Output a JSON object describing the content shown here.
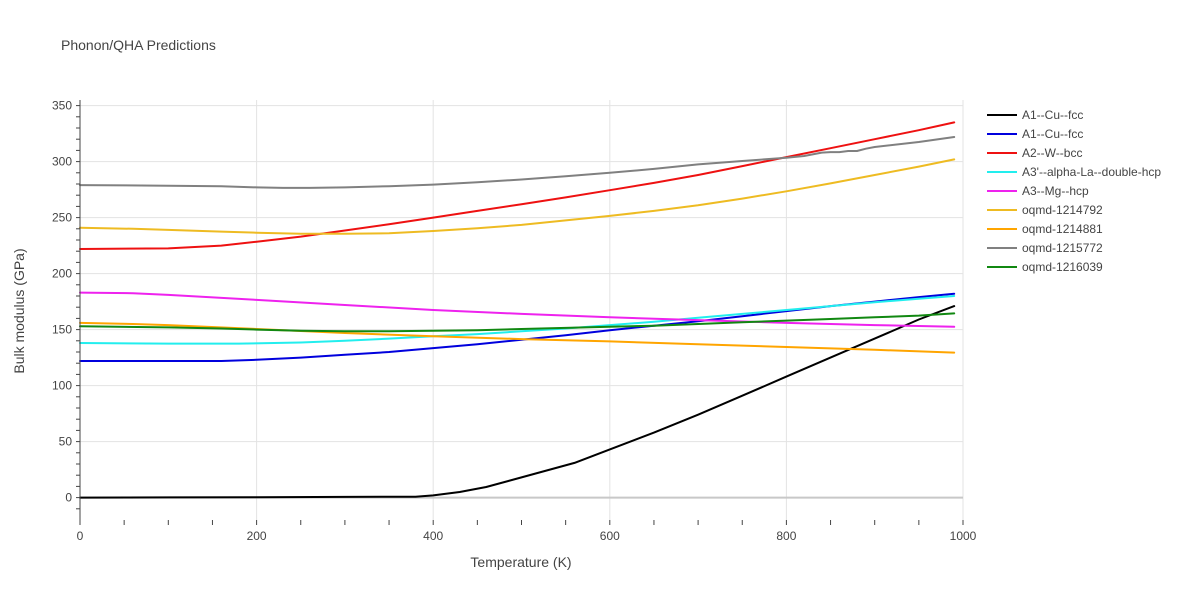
{
  "chart_data": {
    "type": "line",
    "title": "Phonon/QHA Predictions",
    "xlabel": "Temperature (K)",
    "ylabel": "Bulk modulus (GPa)",
    "xlim": [
      0,
      1000
    ],
    "ylim": [
      -20,
      355
    ],
    "x_ticks": [
      0,
      200,
      400,
      600,
      800,
      1000
    ],
    "y_ticks": [
      0,
      50,
      100,
      150,
      200,
      250,
      300,
      350
    ],
    "grid": true,
    "legend_position": "right",
    "series": [
      {
        "name": "A1--Cu--fcc",
        "color": "#000000",
        "x": [
          0,
          100,
          200,
          300,
          380,
          400,
          430,
          460,
          500,
          560,
          600,
          650,
          700,
          750,
          800,
          850,
          900,
          950,
          990
        ],
        "y": [
          0,
          0.2,
          0.4,
          0.6,
          0.8,
          2,
          5,
          9.5,
          18,
          31,
          43,
          58,
          74,
          91,
          108,
          125,
          142,
          159,
          171
        ]
      },
      {
        "name": "A1--Cu--fcc",
        "color": "#0000dd",
        "x": [
          0,
          100,
          160,
          200,
          250,
          300,
          350,
          400,
          450,
          500,
          550,
          600,
          650,
          700,
          750,
          800,
          850,
          900,
          950,
          990
        ],
        "y": [
          122,
          122,
          122,
          123,
          125,
          127.5,
          130,
          133.5,
          137,
          141,
          145,
          149.5,
          153.5,
          157.5,
          162,
          166.5,
          171,
          175,
          179,
          182
        ]
      },
      {
        "name": "A2--W--bcc",
        "color": "#ee1111",
        "x": [
          0,
          100,
          160,
          200,
          250,
          300,
          350,
          400,
          450,
          500,
          550,
          600,
          650,
          700,
          750,
          800,
          850,
          900,
          950,
          990
        ],
        "y": [
          222,
          222.5,
          225,
          228.5,
          233,
          238.5,
          244,
          250,
          256,
          262,
          268,
          274.5,
          281,
          288,
          296,
          304,
          312,
          320,
          328,
          335
        ]
      },
      {
        "name": "A3'--alpha-La--double-hcp",
        "color": "#22eeee",
        "x": [
          0,
          100,
          180,
          250,
          300,
          350,
          400,
          450,
          500,
          550,
          600,
          650,
          700,
          750,
          800,
          850,
          900,
          950,
          990
        ],
        "y": [
          138,
          137.5,
          137.5,
          138.5,
          140,
          142,
          144,
          146,
          148.5,
          151,
          154,
          157,
          160.5,
          164,
          167.5,
          171,
          174.5,
          177.5,
          180
        ]
      },
      {
        "name": "A3--Mg--hcp",
        "color": "#ee22ee",
        "x": [
          0,
          60,
          100,
          200,
          300,
          400,
          500,
          600,
          700,
          800,
          900,
          990
        ],
        "y": [
          183,
          182.5,
          181,
          176.5,
          172,
          167.5,
          164,
          161,
          158.5,
          156,
          154,
          152.5
        ]
      },
      {
        "name": "oqmd-1214792",
        "color": "#eebb22",
        "x": [
          0,
          60,
          100,
          160,
          200,
          250,
          300,
          350,
          400,
          450,
          500,
          550,
          600,
          650,
          700,
          750,
          800,
          850,
          900,
          950,
          990
        ],
        "y": [
          241,
          240,
          239,
          237.5,
          236.5,
          235.5,
          235.5,
          236,
          238,
          240.5,
          243.5,
          247.5,
          251.5,
          256,
          261,
          267,
          273.5,
          280.5,
          288,
          295.5,
          302
        ]
      },
      {
        "name": "oqmd-1214881",
        "color": "#ffa500",
        "x": [
          0,
          60,
          100,
          200,
          300,
          400,
          500,
          600,
          700,
          800,
          900,
          990
        ],
        "y": [
          156,
          155,
          154,
          150.5,
          147,
          144,
          141.5,
          139.5,
          137,
          134.5,
          132,
          129.5
        ]
      },
      {
        "name": "oqmd-1215772",
        "color": "#808080",
        "x": [
          0,
          100,
          160,
          200,
          230,
          260,
          300,
          350,
          400,
          450,
          500,
          550,
          600,
          650,
          700,
          750,
          800,
          820,
          840,
          850,
          860,
          870,
          880,
          890,
          900,
          950,
          990
        ],
        "y": [
          279,
          278.5,
          278,
          277,
          276.5,
          276.5,
          277,
          278,
          279.5,
          281.5,
          284,
          287,
          290,
          293.5,
          297.5,
          300.5,
          303.5,
          305,
          308,
          308.5,
          308.5,
          309.5,
          309.5,
          311.5,
          313,
          317.5,
          322
        ]
      },
      {
        "name": "oqmd-1216039",
        "color": "#118811",
        "x": [
          0,
          100,
          160,
          200,
          250,
          300,
          350,
          400,
          450,
          500,
          550,
          600,
          650,
          700,
          750,
          800,
          850,
          900,
          950,
          990
        ],
        "y": [
          153,
          152,
          151,
          150,
          149,
          148.5,
          148.5,
          149,
          149.5,
          150.5,
          151.5,
          152.5,
          153.5,
          155,
          156.5,
          158,
          159.5,
          161,
          162.5,
          164.5
        ]
      }
    ]
  }
}
